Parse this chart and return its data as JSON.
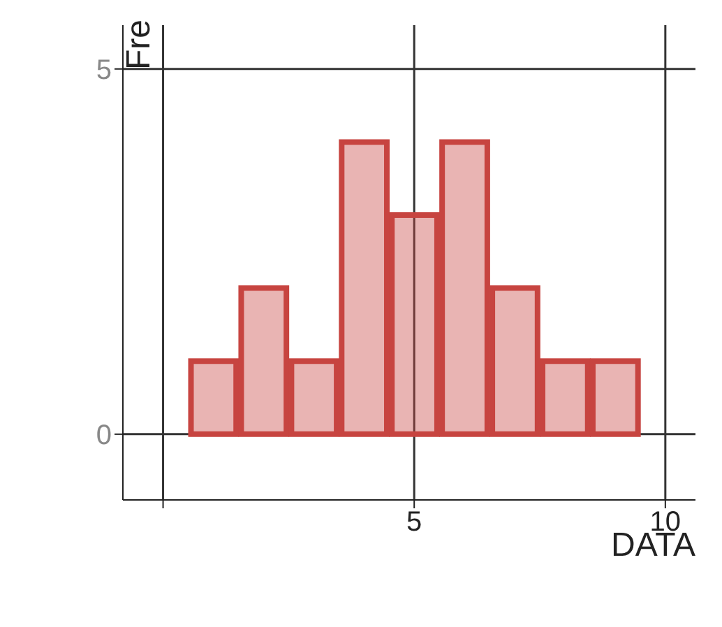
{
  "chart_data": {
    "type": "histogram",
    "xlabel": "DATA",
    "ylabel": "Fre",
    "bins": [
      0.5,
      1.5,
      2.5,
      3.5,
      4.5,
      5.5,
      6.5,
      7.5,
      8.5,
      9.5
    ],
    "values": [
      1,
      2,
      1,
      4,
      3,
      4,
      2,
      1,
      1
    ],
    "color": "#c74440",
    "xlim": [
      -0.8,
      10.6
    ],
    "xticks": [
      {
        "value": 0,
        "label": null
      },
      5,
      10
    ],
    "ylim": [
      -0.9,
      5.6
    ],
    "yticks": [
      0,
      5
    ],
    "grid": true
  }
}
